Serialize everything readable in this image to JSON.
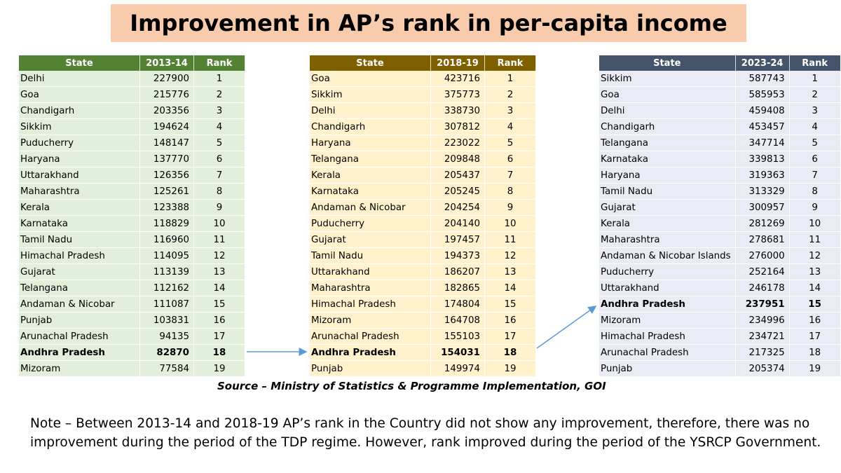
{
  "title": "Improvement in AP’s rank in per-capita income",
  "source": "Source – Ministry of Statistics & Programme Implementation, GOI",
  "note": "Note – Between 2013-14 and 2018-19 AP’s rank in the Country did not show any improvement, therefore, there was no improvement during the period of the TDP regime. However, rank improved during the period of the YSRCP Government.",
  "colors": {
    "title_bg": "#f8cbad",
    "t1_header": "#548235",
    "t1_body": "#e2efda",
    "t2_header": "#7f6000",
    "t2_body": "#fff2cc",
    "t3_header": "#44546a",
    "t3_body": "#e9ecf4",
    "arrow": "#5b9bd5"
  },
  "chart_data": [
    {
      "type": "table",
      "headers": [
        "State",
        "2013-14",
        "Rank"
      ],
      "highlight": "Andhra Pradesh",
      "rows": [
        [
          "Delhi",
          "227900",
          "1"
        ],
        [
          "Goa",
          "215776",
          "2"
        ],
        [
          "Chandigarh",
          "203356",
          "3"
        ],
        [
          "Sikkim",
          "194624",
          "4"
        ],
        [
          "Puducherry",
          "148147",
          "5"
        ],
        [
          "Haryana",
          "137770",
          "6"
        ],
        [
          "Uttarakhand",
          "126356",
          "7"
        ],
        [
          "Maharashtra",
          "125261",
          "8"
        ],
        [
          "Kerala",
          "123388",
          "9"
        ],
        [
          "Karnataka",
          "118829",
          "10"
        ],
        [
          "Tamil Nadu",
          "116960",
          "11"
        ],
        [
          "Himachal Pradesh",
          "114095",
          "12"
        ],
        [
          "Gujarat",
          "113139",
          "13"
        ],
        [
          "Telangana",
          "112162",
          "14"
        ],
        [
          "Andaman & Nicobar",
          "111087",
          "15"
        ],
        [
          "Punjab",
          "103831",
          "16"
        ],
        [
          "Arunachal Pradesh",
          "94135",
          "17"
        ],
        [
          "Andhra Pradesh",
          "82870",
          "18"
        ],
        [
          "Mizoram",
          "77584",
          "19"
        ]
      ]
    },
    {
      "type": "table",
      "headers": [
        "State",
        "2018-19",
        "Rank"
      ],
      "highlight": "Andhra Pradesh",
      "rows": [
        [
          "Goa",
          "423716",
          "1"
        ],
        [
          "Sikkim",
          "375773",
          "2"
        ],
        [
          "Delhi",
          "338730",
          "3"
        ],
        [
          "Chandigarh",
          "307812",
          "4"
        ],
        [
          "Haryana",
          "223022",
          "5"
        ],
        [
          "Telangana",
          "209848",
          "6"
        ],
        [
          "Kerala",
          "205437",
          "7"
        ],
        [
          "Karnataka",
          "205245",
          "8"
        ],
        [
          "Andaman & Nicobar",
          "204254",
          "9"
        ],
        [
          "Puducherry",
          "204140",
          "10"
        ],
        [
          "Gujarat",
          "197457",
          "11"
        ],
        [
          "Tamil Nadu",
          "194373",
          "12"
        ],
        [
          "Uttarakhand",
          "186207",
          "13"
        ],
        [
          "Maharashtra",
          "182865",
          "14"
        ],
        [
          "Himachal Pradesh",
          "174804",
          "15"
        ],
        [
          "Mizoram",
          "164708",
          "16"
        ],
        [
          "Arunachal Pradesh",
          "155103",
          "17"
        ],
        [
          "Andhra Pradesh",
          "154031",
          "18"
        ],
        [
          "Punjab",
          "149974",
          "19"
        ]
      ]
    },
    {
      "type": "table",
      "headers": [
        "State",
        "2023-24",
        "Rank"
      ],
      "highlight": "Andhra Pradesh",
      "rows": [
        [
          "Sikkim",
          "587743",
          "1"
        ],
        [
          "Goa",
          "585953",
          "2"
        ],
        [
          "Delhi",
          "459408",
          "3"
        ],
        [
          "Chandigarh",
          "453457",
          "4"
        ],
        [
          "Telangana",
          "347714",
          "5"
        ],
        [
          "Karnataka",
          "339813",
          "6"
        ],
        [
          "Haryana",
          "319363",
          "7"
        ],
        [
          "Tamil Nadu",
          "313329",
          "8"
        ],
        [
          "Gujarat",
          "300957",
          "9"
        ],
        [
          "Kerala",
          "281269",
          "10"
        ],
        [
          "Maharashtra",
          "278681",
          "11"
        ],
        [
          "Andaman & Nicobar Islands",
          "276000",
          "12"
        ],
        [
          "Puducherry",
          "252164",
          "13"
        ],
        [
          "Uttarakhand",
          "246178",
          "14"
        ],
        [
          "Andhra Pradesh",
          "237951",
          "15"
        ],
        [
          "Mizoram",
          "234996",
          "16"
        ],
        [
          "Himachal Pradesh",
          "234721",
          "17"
        ],
        [
          "Arunachal Pradesh",
          "217325",
          "18"
        ],
        [
          "Punjab",
          "205374",
          "19"
        ]
      ]
    }
  ]
}
